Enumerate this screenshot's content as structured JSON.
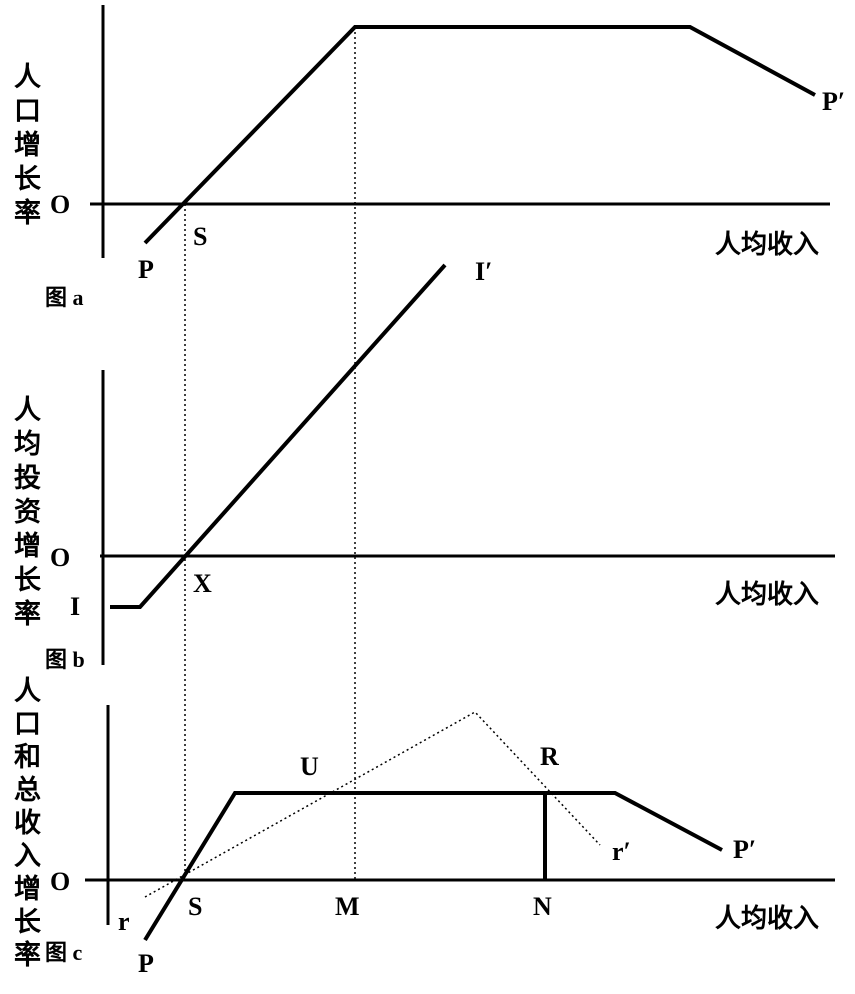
{
  "panels": [
    {
      "ylabel": "人口增长率",
      "xlabel": "人均收入",
      "caption": "图 a",
      "labels": [
        "O",
        "S",
        "P",
        "P′"
      ]
    },
    {
      "ylabel": "人均投资增长率",
      "xlabel": "人均收入",
      "caption": "图 b",
      "labels": [
        "O",
        "X",
        "I",
        "I′"
      ]
    },
    {
      "ylabel": "人口和总收入增长率",
      "xlabel": "人均收入",
      "caption": "图 c",
      "labels": [
        "O",
        "S",
        "M",
        "N",
        "U",
        "R",
        "r",
        "r′",
        "P",
        "P′"
      ]
    }
  ]
}
